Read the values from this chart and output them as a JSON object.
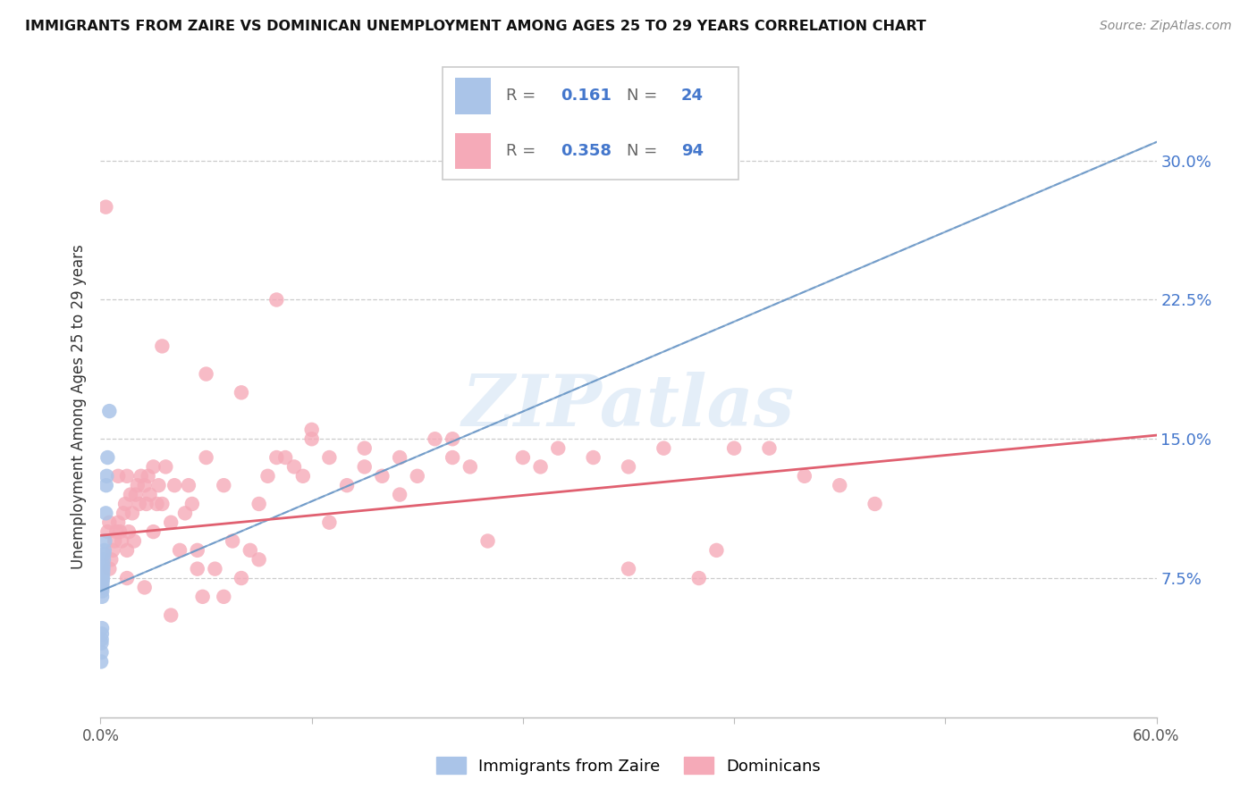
{
  "title": "IMMIGRANTS FROM ZAIRE VS DOMINICAN UNEMPLOYMENT AMONG AGES 25 TO 29 YEARS CORRELATION CHART",
  "source": "Source: ZipAtlas.com",
  "ylabel": "Unemployment Among Ages 25 to 29 years",
  "blue_color": "#aac4e8",
  "pink_color": "#f5aab8",
  "trend_dashed_color": "#aac4e8",
  "trend_pink_color": "#e06070",
  "trend_blue_line_color": "#5588bb",
  "watermark": "ZIPatlas",
  "blue_label": "Immigrants from Zaire",
  "pink_label": "Dominicans",
  "legend_R1": "0.161",
  "legend_N1": "24",
  "legend_R2": "0.358",
  "legend_N2": "94",
  "ytick_vals": [
    0.075,
    0.15,
    0.225,
    0.3
  ],
  "ytick_labels": [
    "7.5%",
    "15.0%",
    "22.5%",
    "30.0%"
  ],
  "xlim": [
    0.0,
    0.6
  ],
  "ylim": [
    0.0,
    0.335
  ],
  "blue_x": [
    0.0003,
    0.0005,
    0.0005,
    0.0006,
    0.0007,
    0.0008,
    0.0008,
    0.0009,
    0.001,
    0.001,
    0.0012,
    0.0013,
    0.0014,
    0.0015,
    0.0016,
    0.0018,
    0.002,
    0.0022,
    0.0025,
    0.003,
    0.0032,
    0.0035,
    0.004,
    0.005
  ],
  "blue_y": [
    0.03,
    0.035,
    0.04,
    0.042,
    0.045,
    0.048,
    0.065,
    0.068,
    0.07,
    0.072,
    0.074,
    0.076,
    0.078,
    0.08,
    0.082,
    0.085,
    0.088,
    0.09,
    0.095,
    0.11,
    0.125,
    0.13,
    0.14,
    0.165
  ],
  "pink_x": [
    0.003,
    0.004,
    0.005,
    0.005,
    0.006,
    0.007,
    0.008,
    0.009,
    0.01,
    0.01,
    0.011,
    0.012,
    0.013,
    0.014,
    0.015,
    0.015,
    0.016,
    0.017,
    0.018,
    0.019,
    0.02,
    0.021,
    0.022,
    0.023,
    0.025,
    0.026,
    0.027,
    0.028,
    0.03,
    0.03,
    0.032,
    0.033,
    0.035,
    0.037,
    0.04,
    0.042,
    0.045,
    0.048,
    0.05,
    0.052,
    0.055,
    0.058,
    0.06,
    0.065,
    0.07,
    0.075,
    0.08,
    0.085,
    0.09,
    0.095,
    0.1,
    0.105,
    0.11,
    0.115,
    0.12,
    0.13,
    0.14,
    0.15,
    0.16,
    0.17,
    0.18,
    0.19,
    0.2,
    0.21,
    0.22,
    0.24,
    0.26,
    0.28,
    0.3,
    0.32,
    0.34,
    0.36,
    0.38,
    0.4,
    0.42,
    0.44,
    0.1,
    0.035,
    0.06,
    0.08,
    0.12,
    0.15,
    0.2,
    0.25,
    0.3,
    0.35,
    0.04,
    0.07,
    0.025,
    0.015,
    0.055,
    0.09,
    0.13,
    0.17
  ],
  "pink_y": [
    0.275,
    0.1,
    0.08,
    0.105,
    0.085,
    0.09,
    0.095,
    0.1,
    0.105,
    0.13,
    0.1,
    0.095,
    0.11,
    0.115,
    0.09,
    0.13,
    0.1,
    0.12,
    0.11,
    0.095,
    0.12,
    0.125,
    0.115,
    0.13,
    0.125,
    0.115,
    0.13,
    0.12,
    0.1,
    0.135,
    0.115,
    0.125,
    0.115,
    0.135,
    0.105,
    0.125,
    0.09,
    0.11,
    0.125,
    0.115,
    0.09,
    0.065,
    0.14,
    0.08,
    0.125,
    0.095,
    0.075,
    0.09,
    0.115,
    0.13,
    0.14,
    0.14,
    0.135,
    0.13,
    0.15,
    0.14,
    0.125,
    0.135,
    0.13,
    0.14,
    0.13,
    0.15,
    0.14,
    0.135,
    0.095,
    0.14,
    0.145,
    0.14,
    0.135,
    0.145,
    0.075,
    0.145,
    0.145,
    0.13,
    0.125,
    0.115,
    0.225,
    0.2,
    0.185,
    0.175,
    0.155,
    0.145,
    0.15,
    0.135,
    0.08,
    0.09,
    0.055,
    0.065,
    0.07,
    0.075,
    0.08,
    0.085,
    0.105,
    0.12
  ],
  "blue_trend_x": [
    0.0,
    0.6
  ],
  "blue_trend_y": [
    0.068,
    0.31
  ],
  "pink_trend_x": [
    0.0,
    0.6
  ],
  "pink_trend_y": [
    0.098,
    0.152
  ]
}
